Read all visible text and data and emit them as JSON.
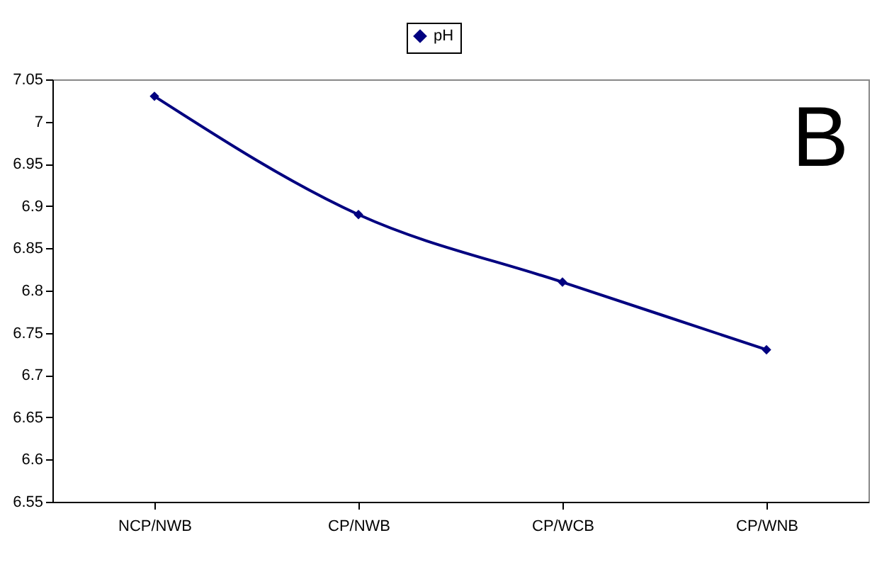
{
  "chart_data": {
    "type": "line",
    "categories": [
      "NCP/NWB",
      "CP/NWB",
      "CP/WCB",
      "CP/WNB"
    ],
    "series": [
      {
        "name": "pH",
        "color": "#000080",
        "values": [
          7.03,
          6.89,
          6.81,
          6.73
        ]
      }
    ],
    "ylim": [
      6.55,
      7.05
    ],
    "yticks": [
      6.55,
      6.6,
      6.65,
      6.7,
      6.75,
      6.8,
      6.85,
      6.9,
      6.95,
      7,
      7.05
    ],
    "grid": false,
    "legend": "top",
    "marker": "diamond",
    "line_style": "solid",
    "annotations": [
      "B"
    ]
  }
}
